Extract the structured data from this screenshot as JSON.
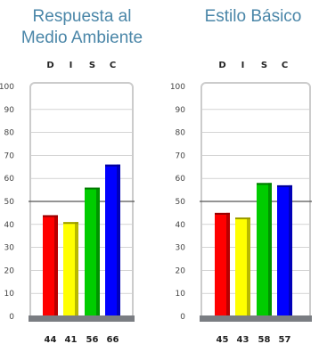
{
  "colors": {
    "title": "#4a86a8",
    "grid": "#bbbbbb",
    "midline": "#555555",
    "frame": "#cccccc",
    "base": "#7a7d82",
    "D": "#ff0000",
    "I": "#ffff00",
    "S": "#00cc00",
    "C": "#0000ff"
  },
  "chart_data": [
    {
      "type": "bar",
      "title": "Respuesta al\nMedio Ambiente",
      "title_lines": [
        "Respuesta al",
        "Medio Ambiente"
      ],
      "categories": [
        "D",
        "I",
        "S",
        "C"
      ],
      "values": [
        44,
        41,
        56,
        66
      ],
      "value_labels": [
        "44",
        "41",
        "56",
        "66"
      ],
      "ylim": [
        0,
        100
      ],
      "yticks": [
        "0",
        "10",
        "20",
        "30",
        "40",
        "50",
        "60",
        "70",
        "80",
        "90",
        "100"
      ],
      "reference_line": 50,
      "grid": true
    },
    {
      "type": "bar",
      "title": "Estilo Básico",
      "title_lines": [
        "Estilo Básico"
      ],
      "categories": [
        "D",
        "I",
        "S",
        "C"
      ],
      "values": [
        45,
        43,
        58,
        57
      ],
      "value_labels": [
        "45",
        "43",
        "58",
        "57"
      ],
      "ylim": [
        0,
        100
      ],
      "yticks": [
        "0",
        "10",
        "20",
        "30",
        "40",
        "50",
        "60",
        "70",
        "80",
        "90",
        "100"
      ],
      "reference_line": 50,
      "grid": true
    }
  ]
}
